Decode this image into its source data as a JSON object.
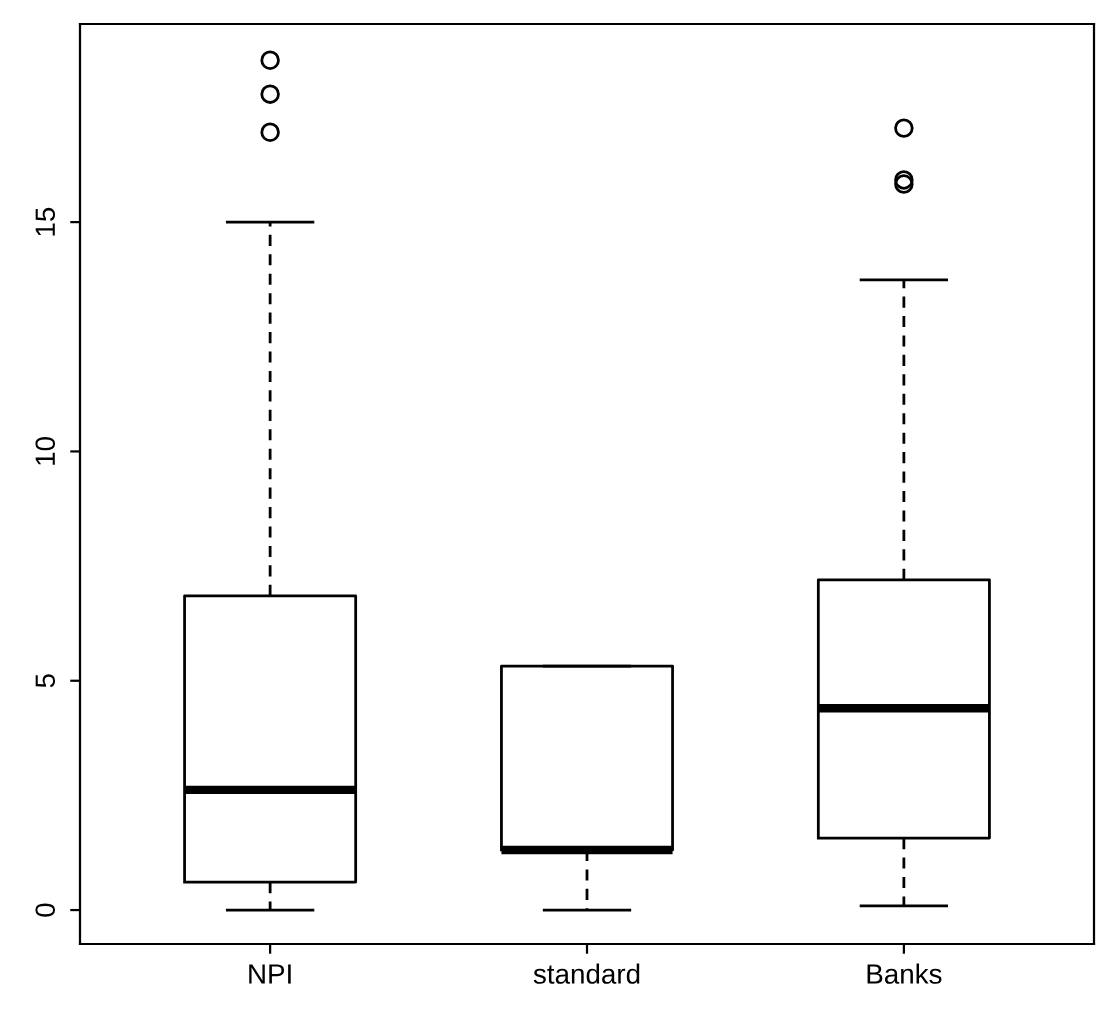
{
  "chart_data": {
    "type": "box",
    "categories": [
      "NPI",
      "standard",
      "Banks"
    ],
    "boxes": [
      {
        "low": 0,
        "q1": 0.61,
        "median": 2.62,
        "q3": 6.85,
        "high": 15.0,
        "outliers": [
          16.96,
          17.79,
          18.53
        ]
      },
      {
        "low": 0,
        "q1": 1.31,
        "median": 1.31,
        "q3": 5.32,
        "high": 5.32
      },
      {
        "low": 0.09,
        "q1": 1.57,
        "median": 4.4,
        "q3": 7.2,
        "high": 13.74,
        "outliers": [
          15.83,
          15.92,
          17.05
        ]
      }
    ],
    "ylim": [
      -0.74,
      19.32
    ],
    "yticks": [
      0,
      5,
      10,
      15
    ],
    "grid": false,
    "legend": false
  }
}
